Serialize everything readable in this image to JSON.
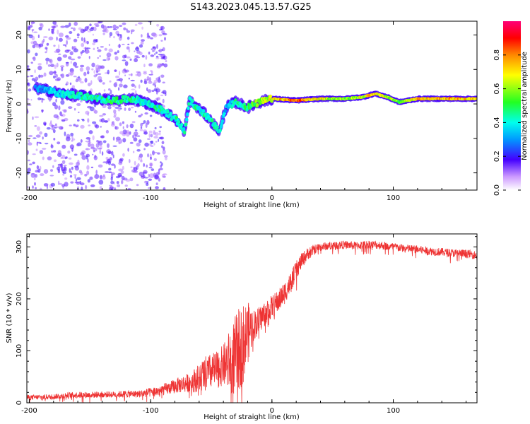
{
  "title": "S143.2023.045.13.57.G25",
  "chart_data": [
    {
      "type": "heatmap",
      "xlabel": "Height of straight line (km)",
      "ylabel": "Frequency (Hz)",
      "xlim": [
        -202,
        169
      ],
      "ylim": [
        -25,
        24
      ],
      "x_ticks": [
        -200,
        -100,
        0,
        100
      ],
      "y_ticks": [
        -20,
        -10,
        0,
        10,
        20
      ],
      "colorbar": {
        "label": "Normalized spectral amplitude",
        "range": [
          0,
          1
        ],
        "ticks": [
          0.0,
          0.2,
          0.4,
          0.6,
          0.8
        ]
      },
      "ridge": {
        "x": [
          -195,
          -185,
          -175,
          -160,
          -145,
          -130,
          -115,
          -105,
          -95,
          -85,
          -78,
          -72,
          -68,
          -62,
          -55,
          -48,
          -43,
          -38,
          -30,
          -20,
          -10,
          0,
          20,
          40,
          60,
          75,
          85,
          95,
          105,
          120,
          140,
          169
        ],
        "y": [
          4.5,
          4,
          3,
          2.5,
          1.5,
          1,
          1.5,
          0.5,
          -1,
          -3,
          -5,
          -8,
          1,
          -1,
          -3,
          -6,
          -8,
          -1,
          0.5,
          -1,
          0.5,
          1.5,
          1,
          1.5,
          1.5,
          2,
          3,
          2,
          0.5,
          1.5,
          1.5,
          1.5
        ],
        "amplitude": [
          0.3,
          0.35,
          0.4,
          0.45,
          0.45,
          0.5,
          0.45,
          0.4,
          0.45,
          0.45,
          0.45,
          0.45,
          0.45,
          0.45,
          0.45,
          0.45,
          0.4,
          0.35,
          0.45,
          0.5,
          0.6,
          0.7,
          0.85,
          0.7,
          0.6,
          0.7,
          0.75,
          0.65,
          0.6,
          0.75,
          0.8,
          0.75
        ]
      }
    },
    {
      "type": "line",
      "xlabel": "Height of straight line (km)",
      "ylabel": "SNR (10 * v/v)",
      "xlim": [
        -202,
        169
      ],
      "ylim": [
        0,
        325
      ],
      "x_ticks": [
        -200,
        -100,
        0,
        100
      ],
      "y_ticks": [
        0,
        100,
        200,
        300
      ],
      "series": [
        {
          "color": "#ee3333",
          "x": [
            -202,
            -190,
            -180,
            -170,
            -160,
            -150,
            -140,
            -130,
            -120,
            -110,
            -100,
            -95,
            -90,
            -85,
            -80,
            -75,
            -70,
            -65,
            -60,
            -55,
            -50,
            -45,
            -40,
            -35,
            -30,
            -25,
            -20,
            -15,
            -10,
            -5,
            0,
            5,
            10,
            15,
            20,
            25,
            30,
            35,
            40,
            50,
            60,
            70,
            80,
            90,
            100,
            110,
            120,
            130,
            140,
            150,
            160,
            169
          ],
          "y": [
            10,
            11,
            12,
            14,
            15,
            15,
            16,
            16,
            17,
            17,
            20,
            22,
            25,
            28,
            32,
            35,
            38,
            42,
            48,
            55,
            60,
            65,
            72,
            80,
            90,
            110,
            135,
            150,
            160,
            175,
            185,
            195,
            210,
            230,
            255,
            275,
            288,
            295,
            300,
            303,
            304,
            302,
            305,
            303,
            300,
            297,
            295,
            292,
            290,
            288,
            287,
            284
          ],
          "noise": [
            5,
            5,
            5,
            6,
            6,
            6,
            6,
            6,
            7,
            7,
            9,
            10,
            11,
            12,
            14,
            16,
            18,
            22,
            28,
            35,
            35,
            35,
            40,
            60,
            80,
            80,
            60,
            30,
            26,
            24,
            22,
            22,
            22,
            20,
            18,
            15,
            12,
            10,
            8,
            8,
            8,
            8,
            8,
            8,
            8,
            8,
            8,
            8,
            8,
            8,
            8,
            8
          ]
        }
      ]
    }
  ]
}
